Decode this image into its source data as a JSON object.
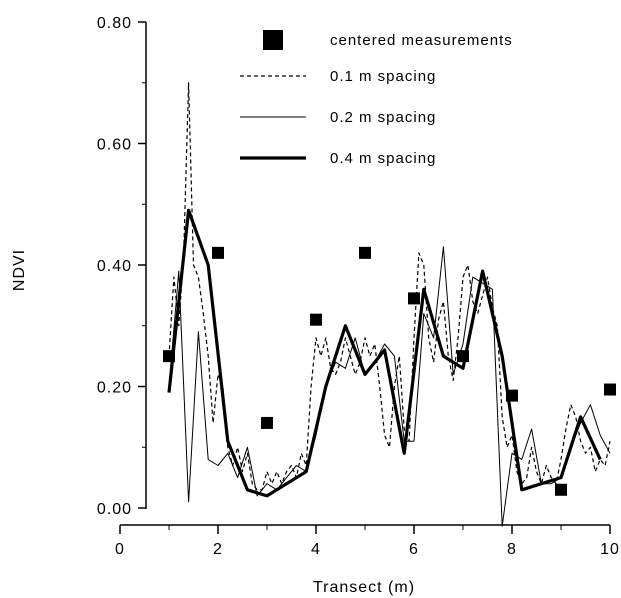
{
  "chart_data": {
    "type": "line",
    "xlabel": "Transect (m)",
    "ylabel": "NDVI",
    "xlim": [
      0,
      10
    ],
    "ylim": [
      0,
      0.8
    ],
    "xticks": [
      0,
      2,
      4,
      6,
      8,
      10
    ],
    "yticks": [
      0.0,
      0.2,
      0.4,
      0.6,
      0.8
    ],
    "ytick_labels": [
      "0.00",
      "0.20",
      "0.40",
      "0.60",
      "0.80"
    ],
    "grid": false,
    "legend_position": "top-right",
    "series": [
      {
        "name": "centered measurements",
        "style": "square-markers",
        "color": "#000000",
        "points": [
          [
            1.0,
            0.25
          ],
          [
            2.0,
            0.42
          ],
          [
            3.0,
            0.14
          ],
          [
            4.0,
            0.31
          ],
          [
            5.0,
            0.42
          ],
          [
            6.0,
            0.345
          ],
          [
            7.0,
            0.25
          ],
          [
            8.0,
            0.185
          ],
          [
            9.0,
            0.03
          ],
          [
            10.0,
            0.195
          ]
        ]
      },
      {
        "name": "0.1 m spacing",
        "style": "dashed",
        "color": "#000000",
        "points": [
          [
            1.0,
            0.25
          ],
          [
            1.1,
            0.38
          ],
          [
            1.2,
            0.3
          ],
          [
            1.3,
            0.42
          ],
          [
            1.4,
            0.7
          ],
          [
            1.5,
            0.4
          ],
          [
            1.6,
            0.38
          ],
          [
            1.7,
            0.32
          ],
          [
            1.8,
            0.25
          ],
          [
            1.9,
            0.14
          ],
          [
            2.0,
            0.22
          ],
          [
            2.1,
            0.2
          ],
          [
            2.2,
            0.1
          ],
          [
            2.3,
            0.07
          ],
          [
            2.4,
            0.1
          ],
          [
            2.5,
            0.06
          ],
          [
            2.6,
            0.09
          ],
          [
            2.7,
            0.04
          ],
          [
            2.8,
            0.03
          ],
          [
            2.9,
            0.03
          ],
          [
            3.0,
            0.06
          ],
          [
            3.1,
            0.04
          ],
          [
            3.2,
            0.06
          ],
          [
            3.3,
            0.04
          ],
          [
            3.4,
            0.06
          ],
          [
            3.5,
            0.07
          ],
          [
            3.6,
            0.05
          ],
          [
            3.7,
            0.09
          ],
          [
            3.8,
            0.07
          ],
          [
            3.9,
            0.2
          ],
          [
            4.0,
            0.28
          ],
          [
            4.1,
            0.25
          ],
          [
            4.2,
            0.28
          ],
          [
            4.3,
            0.23
          ],
          [
            4.4,
            0.22
          ],
          [
            4.5,
            0.24
          ],
          [
            4.6,
            0.28
          ],
          [
            4.7,
            0.25
          ],
          [
            4.8,
            0.22
          ],
          [
            4.9,
            0.24
          ],
          [
            5.0,
            0.28
          ],
          [
            5.1,
            0.25
          ],
          [
            5.2,
            0.27
          ],
          [
            5.3,
            0.2
          ],
          [
            5.4,
            0.12
          ],
          [
            5.5,
            0.1
          ],
          [
            5.6,
            0.2
          ],
          [
            5.7,
            0.25
          ],
          [
            5.8,
            0.13
          ],
          [
            5.9,
            0.11
          ],
          [
            6.0,
            0.28
          ],
          [
            6.1,
            0.42
          ],
          [
            6.2,
            0.4
          ],
          [
            6.3,
            0.28
          ],
          [
            6.4,
            0.24
          ],
          [
            6.5,
            0.31
          ],
          [
            6.6,
            0.34
          ],
          [
            6.7,
            0.25
          ],
          [
            6.8,
            0.21
          ],
          [
            6.9,
            0.28
          ],
          [
            7.0,
            0.38
          ],
          [
            7.1,
            0.4
          ],
          [
            7.2,
            0.34
          ],
          [
            7.3,
            0.32
          ],
          [
            7.4,
            0.35
          ],
          [
            7.5,
            0.38
          ],
          [
            7.6,
            0.33
          ],
          [
            7.7,
            0.3
          ],
          [
            7.8,
            0.15
          ],
          [
            7.9,
            0.1
          ],
          [
            8.0,
            0.12
          ],
          [
            8.1,
            0.06
          ],
          [
            8.2,
            0.04
          ],
          [
            8.3,
            0.05
          ],
          [
            8.4,
            0.1
          ],
          [
            8.5,
            0.06
          ],
          [
            8.6,
            0.04
          ],
          [
            8.7,
            0.07
          ],
          [
            8.8,
            0.05
          ],
          [
            8.9,
            0.04
          ],
          [
            9.0,
            0.08
          ],
          [
            9.1,
            0.13
          ],
          [
            9.2,
            0.17
          ],
          [
            9.3,
            0.15
          ],
          [
            9.4,
            0.11
          ],
          [
            9.5,
            0.09
          ],
          [
            9.6,
            0.1
          ],
          [
            9.7,
            0.06
          ],
          [
            9.8,
            0.08
          ],
          [
            9.9,
            0.07
          ],
          [
            10.0,
            0.11
          ]
        ]
      },
      {
        "name": "0.2 m spacing",
        "style": "thin-solid",
        "color": "#000000",
        "points": [
          [
            1.0,
            0.2
          ],
          [
            1.2,
            0.39
          ],
          [
            1.4,
            0.01
          ],
          [
            1.6,
            0.29
          ],
          [
            1.8,
            0.08
          ],
          [
            2.0,
            0.07
          ],
          [
            2.2,
            0.09
          ],
          [
            2.4,
            0.05
          ],
          [
            2.6,
            0.1
          ],
          [
            2.8,
            0.02
          ],
          [
            3.0,
            0.04
          ],
          [
            3.2,
            0.03
          ],
          [
            3.4,
            0.05
          ],
          [
            3.6,
            0.07
          ],
          [
            3.8,
            0.06
          ],
          [
            4.0,
            0.12
          ],
          [
            4.2,
            0.2
          ],
          [
            4.4,
            0.24
          ],
          [
            4.6,
            0.23
          ],
          [
            4.8,
            0.28
          ],
          [
            5.0,
            0.22
          ],
          [
            5.2,
            0.24
          ],
          [
            5.4,
            0.27
          ],
          [
            5.6,
            0.25
          ],
          [
            5.8,
            0.11
          ],
          [
            6.0,
            0.11
          ],
          [
            6.2,
            0.32
          ],
          [
            6.4,
            0.28
          ],
          [
            6.6,
            0.43
          ],
          [
            6.8,
            0.22
          ],
          [
            7.0,
            0.27
          ],
          [
            7.2,
            0.38
          ],
          [
            7.4,
            0.37
          ],
          [
            7.6,
            0.36
          ],
          [
            7.8,
            -0.03
          ],
          [
            8.0,
            0.09
          ],
          [
            8.2,
            0.08
          ],
          [
            8.4,
            0.13
          ],
          [
            8.6,
            0.04
          ],
          [
            8.8,
            0.04
          ],
          [
            9.0,
            0.05
          ],
          [
            9.2,
            0.1
          ],
          [
            9.4,
            0.14
          ],
          [
            9.6,
            0.17
          ],
          [
            9.8,
            0.12
          ],
          [
            10.0,
            0.09
          ]
        ]
      },
      {
        "name": "0.4 m spacing",
        "style": "thick-solid",
        "color": "#000000",
        "points": [
          [
            1.0,
            0.19
          ],
          [
            1.4,
            0.49
          ],
          [
            1.8,
            0.4
          ],
          [
            2.2,
            0.11
          ],
          [
            2.6,
            0.03
          ],
          [
            3.0,
            0.02
          ],
          [
            3.4,
            0.04
          ],
          [
            3.8,
            0.06
          ],
          [
            4.2,
            0.2
          ],
          [
            4.6,
            0.3
          ],
          [
            5.0,
            0.22
          ],
          [
            5.4,
            0.26
          ],
          [
            5.8,
            0.09
          ],
          [
            6.2,
            0.36
          ],
          [
            6.6,
            0.25
          ],
          [
            7.0,
            0.23
          ],
          [
            7.4,
            0.39
          ],
          [
            7.8,
            0.25
          ],
          [
            8.2,
            0.03
          ],
          [
            8.6,
            0.04
          ],
          [
            9.0,
            0.05
          ],
          [
            9.4,
            0.15
          ],
          [
            9.8,
            0.08
          ]
        ]
      }
    ]
  }
}
